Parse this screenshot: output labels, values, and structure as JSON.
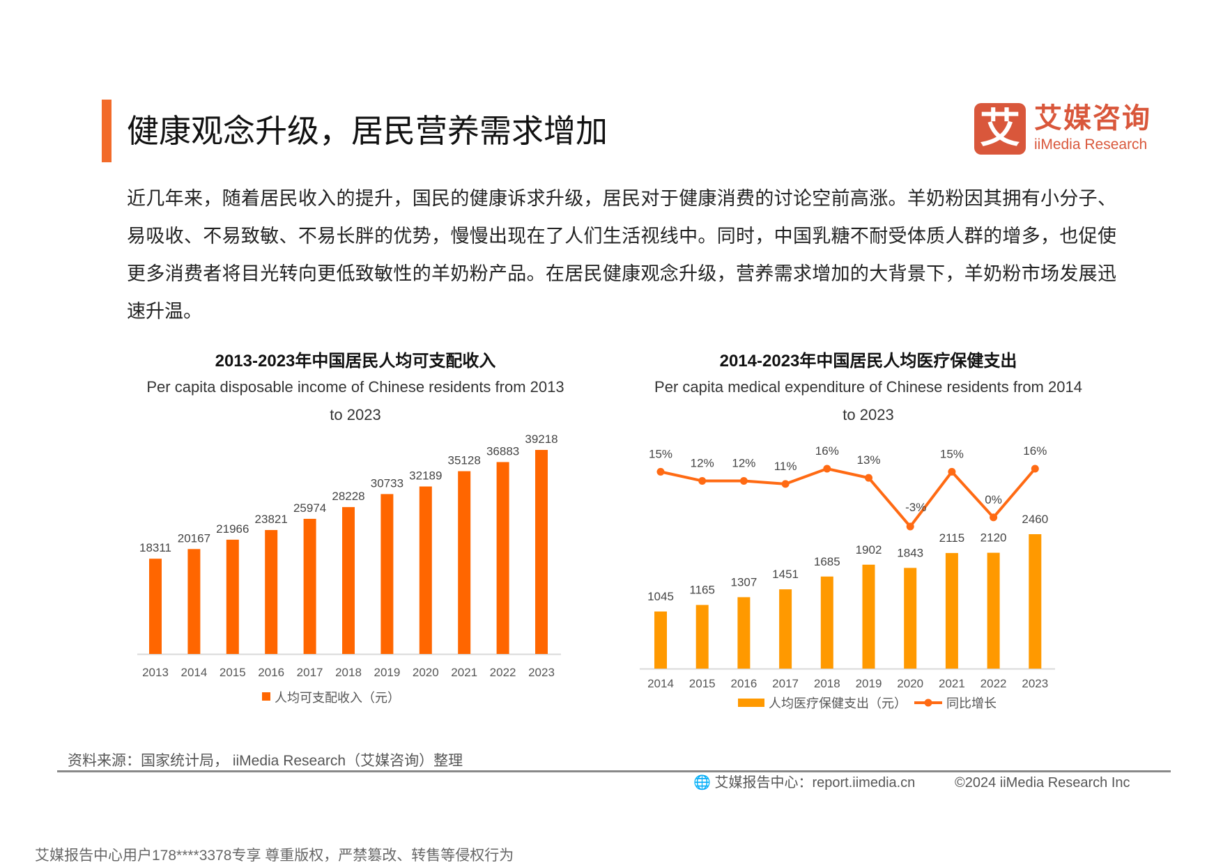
{
  "header": {
    "title": "健康观念升级，居民营养需求增加",
    "accent_color": "#F26B2A"
  },
  "logo": {
    "glyph": "艾",
    "cn": "艾媒咨询",
    "en": "iiMedia Research",
    "color": "#D9573B"
  },
  "paragraph": "近几年来，随着居民收入的提升，国民的健康诉求升级，居民对于健康消费的讨论空前高涨。羊奶粉因其拥有小分子、易吸收、不易致敏、不易长胖的优势，慢慢出现在了人们生活视线中。同时，中国乳糖不耐受体质人群的增多，也促使更多消费者将目光转向更低致敏性的羊奶粉产品。在居民健康观念升级，营养需求增加的大背景下，羊奶粉市场发展迅速升温。",
  "chart_data": [
    {
      "type": "bar",
      "title": "2013-2023年中国居民人均可支配收入",
      "subtitle": "Per capita disposable income of Chinese residents from 2013 to 2023",
      "categories": [
        "2013",
        "2014",
        "2015",
        "2016",
        "2017",
        "2018",
        "2019",
        "2020",
        "2021",
        "2022",
        "2023"
      ],
      "series": [
        {
          "name": "人均可支配收入（元）",
          "values": [
            18311,
            20167,
            21966,
            23821,
            25974,
            28228,
            30733,
            32189,
            35128,
            36883,
            39218
          ],
          "color": "#FF6600"
        }
      ],
      "legend": "bottom",
      "grid": false,
      "ylim": [
        0,
        40000
      ]
    },
    {
      "type": "bar+line",
      "title": "2014-2023年中国居民人均医疗保健支出",
      "subtitle": "Per capita medical expenditure of Chinese residents from 2014 to 2023",
      "categories": [
        "2014",
        "2015",
        "2016",
        "2017",
        "2018",
        "2019",
        "2020",
        "2021",
        "2022",
        "2023"
      ],
      "series": [
        {
          "name": "人均医疗保健支出（元）",
          "type": "bar",
          "values": [
            1045,
            1165,
            1307,
            1451,
            1685,
            1902,
            1843,
            2115,
            2120,
            2460
          ],
          "color": "#FF9900"
        },
        {
          "name": "同比增长",
          "type": "line",
          "values": [
            15,
            12,
            12,
            11,
            16,
            13,
            -3,
            15,
            0,
            16
          ],
          "labels": [
            "15%",
            "12%",
            "12%",
            "11%",
            "16%",
            "13%",
            "-3%",
            "15%",
            "0%",
            "16%"
          ],
          "color": "#FF6A13"
        }
      ],
      "legend": "bottom",
      "grid": false
    }
  ],
  "footer": {
    "source": "资料来源：国家统计局， iiMedia Research（艾媒咨询）整理",
    "report_center": "艾媒报告中心：report.iimedia.cn",
    "copyright": "©2024  iiMedia Research  Inc",
    "watermark": "艾媒报告中心用户178****3378专享 尊重版权，严禁篡改、转售等侵权行为"
  }
}
